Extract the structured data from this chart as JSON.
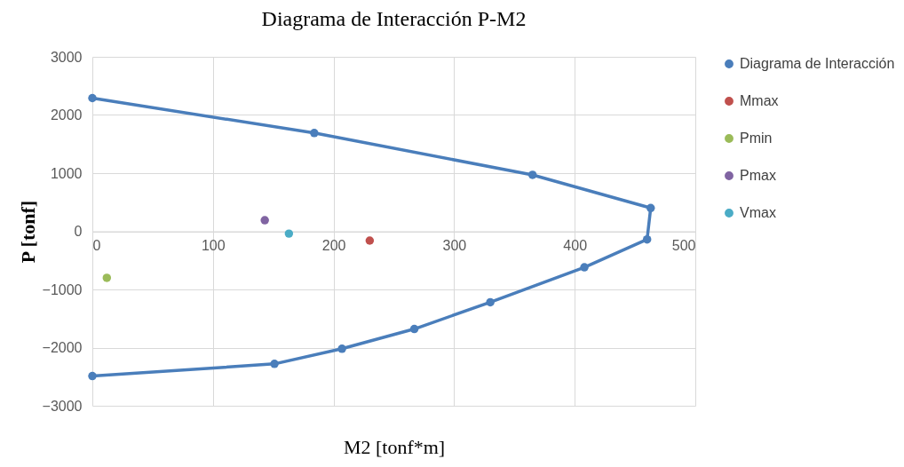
{
  "chart_data": {
    "type": "line",
    "title": "Diagrama de Interacción P-M2",
    "xlabel": "M2 [tonf*m]",
    "ylabel": "P [tonf]",
    "xlim": [
      0,
      500
    ],
    "xticks": [
      0,
      100,
      200,
      300,
      400,
      500
    ],
    "ylim": [
      -3000,
      3000
    ],
    "yticks": [
      -3000,
      -2000,
      -1000,
      0,
      1000,
      2000,
      3000
    ],
    "grid": true,
    "legend": "right",
    "marker": "circle",
    "series": [
      {
        "name": "Diagrama de Interacción",
        "color": "#4a7ebb",
        "x": [
          0,
          184,
          365,
          463,
          460,
          408,
          330,
          267,
          207,
          151,
          0
        ],
        "values": [
          2290,
          1690,
          970,
          400,
          -140,
          -620,
          -1220,
          -1680,
          -2020,
          -2280,
          -2490
        ]
      },
      {
        "name": "Mmax",
        "type": "scatter",
        "color": "#c0504d",
        "x": [
          230
        ],
        "values": [
          -160
        ]
      },
      {
        "name": "Pmin",
        "type": "scatter",
        "color": "#9bbb59",
        "x": [
          12
        ],
        "values": [
          -800
        ]
      },
      {
        "name": "Pmax",
        "type": "scatter",
        "color": "#8064a2",
        "x": [
          143
        ],
        "values": [
          190
        ]
      },
      {
        "name": "Vmax",
        "type": "scatter",
        "color": "#4bacc6",
        "x": [
          163
        ],
        "values": [
          -40
        ]
      }
    ]
  }
}
